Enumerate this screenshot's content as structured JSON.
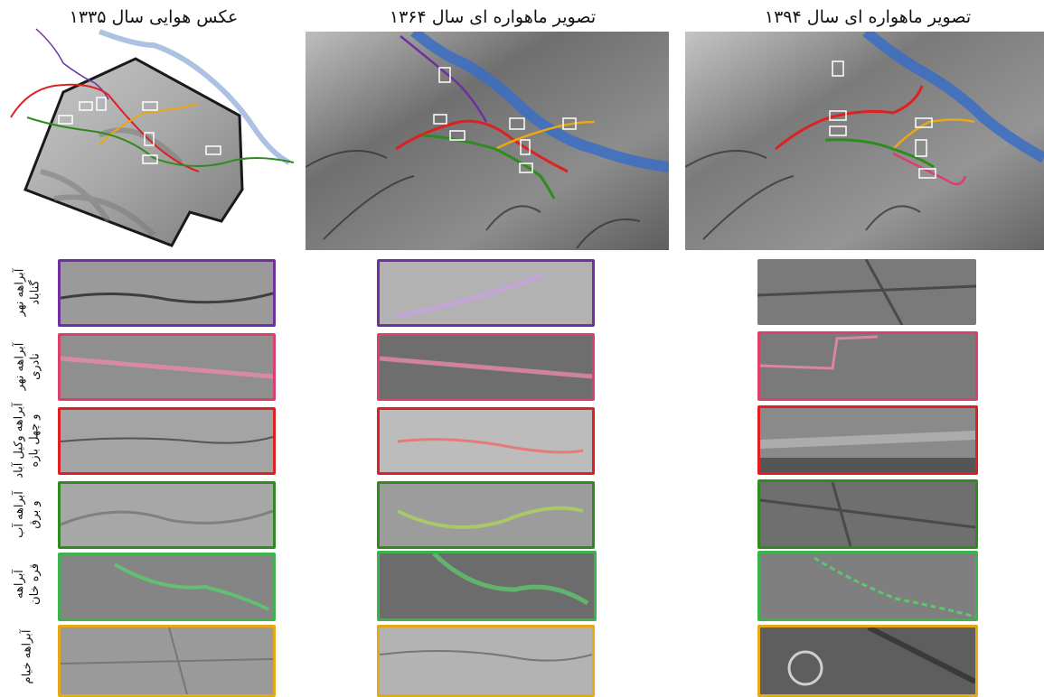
{
  "columns": [
    {
      "id": "aerial-1335",
      "title": "عکس هوایی سال ۱۳۳۵"
    },
    {
      "id": "satellite-1364",
      "title": "تصویر ماهواره ای سال ۱۳۶۴"
    },
    {
      "id": "satellite-1394",
      "title": "تصویر ماهواره ای سال ۱۳۹۴"
    }
  ],
  "rows": [
    {
      "label_lines": [
        "آبراهه نهر",
        "گناباد"
      ],
      "color": "#7030a0"
    },
    {
      "label_lines": [
        "آبراهه نهر",
        "نادری"
      ],
      "color": "#d9406a"
    },
    {
      "label_lines": [
        "آبراهه وکیل آباد",
        "و چهل بازه"
      ],
      "color": "#e02020"
    },
    {
      "label_lines": [
        "آبراهه آب",
        "و برق"
      ],
      "color": "#2e8b1e"
    },
    {
      "label_lines": [
        "آبراهه",
        "قره خان"
      ],
      "color": "#3cb44b"
    },
    {
      "label_lines": [
        "آبراهه خیام"
      ],
      "color": "#e6a817"
    }
  ],
  "river_color": "#3a6fc4",
  "river_color_faded": "#9fb7dd"
}
